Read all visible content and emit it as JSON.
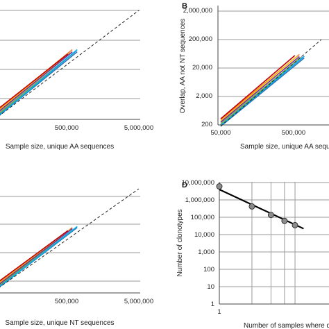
{
  "chart_data": [
    {
      "panel": "A",
      "label_shown": "",
      "type": "line",
      "xscale": "log",
      "xlabel": "Sample size, unique AA sequences",
      "x_ticks": [
        "500,000",
        "5,000,000"
      ],
      "ylabel": "",
      "y_ticks": [],
      "grid": "horizontal",
      "annotations": [
        "dashed extrapolation line"
      ],
      "series": [
        {
          "color": "#2e75b6",
          "x": [
            50000,
            700000
          ],
          "y": [
            0.0,
            0.62
          ]
        },
        {
          "color": "#ed7d31",
          "x": [
            50000,
            600000
          ],
          "y": [
            0.06,
            0.64
          ]
        },
        {
          "color": "#a5a5a5",
          "x": [
            50000,
            650000
          ],
          "y": [
            0.03,
            0.62
          ]
        },
        {
          "color": "#ffc000",
          "x": [
            50000,
            560000
          ],
          "y": [
            0.05,
            0.61
          ]
        },
        {
          "color": "#4472c4",
          "x": [
            50000,
            680000
          ],
          "y": [
            0.01,
            0.63
          ]
        },
        {
          "color": "#70ad47",
          "x": [
            50000,
            620000
          ],
          "y": [
            0.02,
            0.61
          ]
        },
        {
          "color": "#c00000",
          "x": [
            50000,
            520000
          ],
          "y": [
            0.07,
            0.6
          ]
        },
        {
          "color": "#7030a0",
          "x": [
            50000,
            600000
          ],
          "y": [
            0.04,
            0.62
          ]
        },
        {
          "color": "#00b0f0",
          "x": [
            50000,
            700000
          ],
          "y": [
            0.0,
            0.64
          ]
        }
      ],
      "dashed": {
        "x": [
          50000,
          5000000
        ],
        "y": [
          0.0,
          1.0
        ]
      }
    },
    {
      "panel": "B",
      "label_shown": "B",
      "type": "line",
      "xscale": "log",
      "yscale": "log",
      "xlabel": "Sample size, unique AA seque",
      "x_ticks": [
        "50,000",
        "500,000"
      ],
      "ylabel": "Overlap, AA not NT sequences",
      "y_ticks": [
        "200",
        "2,000",
        "20,000",
        "200,000",
        "2,000,000"
      ],
      "grid": "horizontal",
      "annotations": [
        "dashed extrapolation line"
      ],
      "series": [
        {
          "color": "#2e75b6",
          "x": [
            50000,
            700000
          ],
          "y": [
            180,
            45000
          ]
        },
        {
          "color": "#ed7d31",
          "x": [
            50000,
            600000
          ],
          "y": [
            310,
            60000
          ]
        },
        {
          "color": "#a5a5a5",
          "x": [
            50000,
            650000
          ],
          "y": [
            230,
            50000
          ]
        },
        {
          "color": "#ffc000",
          "x": [
            50000,
            560000
          ],
          "y": [
            270,
            52000
          ]
        },
        {
          "color": "#4472c4",
          "x": [
            50000,
            680000
          ],
          "y": [
            200,
            48000
          ]
        },
        {
          "color": "#70ad47",
          "x": [
            50000,
            620000
          ],
          "y": [
            210,
            47000
          ]
        },
        {
          "color": "#c00000",
          "x": [
            50000,
            520000
          ],
          "y": [
            330,
            55000
          ]
        },
        {
          "color": "#7030a0",
          "x": [
            50000,
            600000
          ],
          "y": [
            250,
            51000
          ]
        },
        {
          "color": "#00b0f0",
          "x": [
            50000,
            700000
          ],
          "y": [
            190,
            52000
          ]
        }
      ],
      "dashed": {
        "x": [
          50000,
          1200000
        ],
        "y": [
          180,
          200000
        ]
      }
    },
    {
      "panel": "C",
      "label_shown": "",
      "type": "line",
      "xscale": "log",
      "xlabel": "Sample size, unique NT sequences",
      "x_ticks": [
        "500,000",
        "5,000,000"
      ],
      "ylabel": "",
      "y_ticks": [],
      "grid": "horizontal",
      "annotations": [
        "dashed extrapolation line"
      ],
      "series": [
        {
          "color": "#2e75b6",
          "x": [
            50000,
            700000
          ],
          "y": [
            0.0,
            0.62
          ]
        },
        {
          "color": "#ed7d31",
          "x": [
            50000,
            600000
          ],
          "y": [
            0.05,
            0.62
          ]
        },
        {
          "color": "#a5a5a5",
          "x": [
            50000,
            650000
          ],
          "y": [
            0.03,
            0.61
          ]
        },
        {
          "color": "#ffc000",
          "x": [
            50000,
            560000
          ],
          "y": [
            0.04,
            0.6
          ]
        },
        {
          "color": "#4472c4",
          "x": [
            50000,
            680000
          ],
          "y": [
            0.01,
            0.62
          ]
        },
        {
          "color": "#70ad47",
          "x": [
            50000,
            620000
          ],
          "y": [
            0.02,
            0.6
          ]
        },
        {
          "color": "#c00000",
          "x": [
            50000,
            520000
          ],
          "y": [
            0.06,
            0.59
          ]
        },
        {
          "color": "#7030a0",
          "x": [
            50000,
            600000
          ],
          "y": [
            0.03,
            0.61
          ]
        },
        {
          "color": "#00b0f0",
          "x": [
            50000,
            700000
          ],
          "y": [
            0.0,
            0.63
          ]
        }
      ],
      "dashed": {
        "x": [
          50000,
          5000000
        ],
        "y": [
          0.0,
          1.0
        ]
      }
    },
    {
      "panel": "D",
      "label_shown": "D",
      "type": "scatter",
      "xscale": "log",
      "yscale": "log",
      "xlabel": "Number of samples where de",
      "x_ticks": [
        "1"
      ],
      "ylabel": "Number of clonotypes",
      "y_ticks": [
        "1",
        "10",
        "100",
        "1,000",
        "10,000",
        "100,000",
        "1,000,000",
        "10,000,000"
      ],
      "grid": "both",
      "points": {
        "x": [
          1,
          2,
          3,
          4,
          5
        ],
        "y": [
          6000000,
          420000,
          135000,
          62000,
          35000
        ]
      },
      "trendline": {
        "x": [
          1,
          6
        ],
        "y": [
          4000000,
          22000
        ]
      }
    }
  ]
}
